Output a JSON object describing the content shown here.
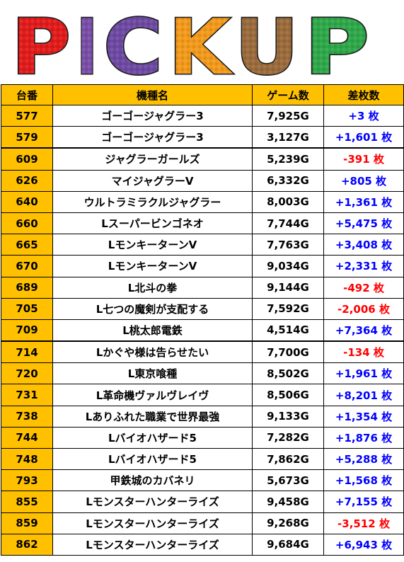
{
  "banner": {
    "letters": [
      "P",
      "I",
      "C",
      "K",
      "U",
      "P"
    ],
    "colors": [
      "#e21b1b",
      "#7a4ea8",
      "#6e4aa3",
      "#f39a1b",
      "#9b6b3c",
      "#2fa84a"
    ]
  },
  "table": {
    "headers": [
      "台番",
      "機種名",
      "ゲーム数",
      "差枚数"
    ],
    "rows": [
      {
        "num": "577",
        "name": "ゴーゴージャグラー3",
        "games": "7,925G",
        "diff": "+3 枚",
        "sign": "pos"
      },
      {
        "num": "579",
        "name": "ゴーゴージャグラー3",
        "games": "3,127G",
        "diff": "+1,601 枚",
        "sign": "pos"
      },
      {
        "num": "609",
        "name": "ジャグラーガールズ",
        "games": "5,239G",
        "diff": "-391 枚",
        "sign": "neg"
      },
      {
        "num": "626",
        "name": "マイジャグラーV",
        "games": "6,332G",
        "diff": "+805 枚",
        "sign": "pos"
      },
      {
        "num": "640",
        "name": "ウルトラミラクルジャグラー",
        "games": "8,003G",
        "diff": "+1,361 枚",
        "sign": "pos"
      },
      {
        "num": "660",
        "name": "Lスーパービンゴネオ",
        "games": "7,744G",
        "diff": "+5,475 枚",
        "sign": "pos"
      },
      {
        "num": "665",
        "name": "LモンキーターンV",
        "games": "7,763G",
        "diff": "+3,408 枚",
        "sign": "pos"
      },
      {
        "num": "670",
        "name": "LモンキーターンV",
        "games": "9,034G",
        "diff": "+2,331 枚",
        "sign": "pos"
      },
      {
        "num": "689",
        "name": "L北斗の拳",
        "games": "9,144G",
        "diff": "-492 枚",
        "sign": "neg"
      },
      {
        "num": "705",
        "name": "L七つの魔剣が支配する",
        "games": "7,592G",
        "diff": "-2,006 枚",
        "sign": "neg"
      },
      {
        "num": "709",
        "name": "L桃太郎電鉄",
        "games": "4,514G",
        "diff": "+7,364 枚",
        "sign": "pos"
      },
      {
        "num": "714",
        "name": "Lかぐや様は告らせたい",
        "games": "7,700G",
        "diff": "-134 枚",
        "sign": "neg"
      },
      {
        "num": "720",
        "name": "L東京喰種",
        "games": "8,502G",
        "diff": "+1,961 枚",
        "sign": "pos"
      },
      {
        "num": "731",
        "name": "L革命機ヴァルヴレイヴ",
        "games": "8,506G",
        "diff": "+8,201 枚",
        "sign": "pos"
      },
      {
        "num": "738",
        "name": "Lありふれた職業で世界最強",
        "games": "9,133G",
        "diff": "+1,354 枚",
        "sign": "pos"
      },
      {
        "num": "744",
        "name": "Lバイオハザード5",
        "games": "7,282G",
        "diff": "+1,876 枚",
        "sign": "pos"
      },
      {
        "num": "748",
        "name": "Lバイオハザード5",
        "games": "7,862G",
        "diff": "+5,288 枚",
        "sign": "pos"
      },
      {
        "num": "793",
        "name": "甲鉄城のカバネリ",
        "games": "5,673G",
        "diff": "+1,568 枚",
        "sign": "pos"
      },
      {
        "num": "855",
        "name": "Lモンスターハンターライズ",
        "games": "9,458G",
        "diff": "+7,155 枚",
        "sign": "pos"
      },
      {
        "num": "859",
        "name": "Lモンスターハンターライズ",
        "games": "9,268G",
        "diff": "-3,512 枚",
        "sign": "neg"
      },
      {
        "num": "862",
        "name": "Lモンスターハンターライズ",
        "games": "9,684G",
        "diff": "+6,943 枚",
        "sign": "pos"
      }
    ]
  }
}
